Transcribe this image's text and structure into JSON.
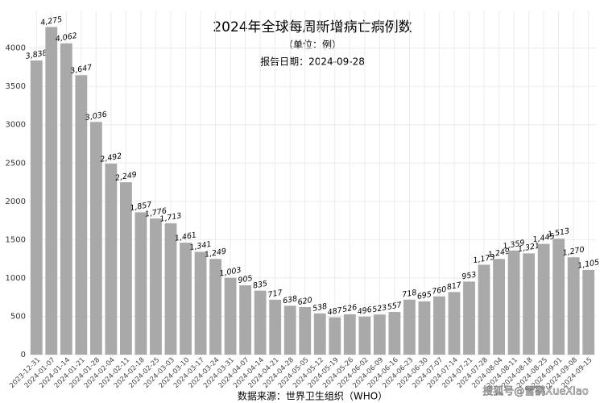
{
  "chart_data": {
    "type": "bar",
    "title": "2024年全球每周新增病亡病例数",
    "subtitle": "（单位：例）",
    "report_date": "报告日期：2024-09-28",
    "source": "数据来源：世界卫生组织（WHO）",
    "watermark": "搜狐号@雪鹞XueXiao",
    "categories": [
      "2023-12-31",
      "2024-01-07",
      "2024-01-14",
      "2024-01-21",
      "2024-01-28",
      "2024-02-04",
      "2024-02-11",
      "2024-02-18",
      "2024-02-25",
      "2024-03-03",
      "2024-03-10",
      "2024-03-17",
      "2024-03-24",
      "2024-03-31",
      "2024-04-07",
      "2024-04-14",
      "2024-04-21",
      "2024-04-28",
      "2024-05-05",
      "2024-05-12",
      "2024-05-19",
      "2024-05-26",
      "2024-06-02",
      "2024-06-09",
      "2024-06-16",
      "2024-06-23",
      "2024-06-30",
      "2024-07-07",
      "2024-07-14",
      "2024-07-21",
      "2024-07-28",
      "2024-08-04",
      "2024-08-11",
      "2024-08-18",
      "2024-08-25",
      "2024-09-01",
      "2024-09-08",
      "2024-09-15"
    ],
    "values": [
      3838,
      4275,
      4062,
      3647,
      3036,
      2492,
      2249,
      1857,
      1776,
      1713,
      1461,
      1341,
      1249,
      1003,
      905,
      835,
      717,
      638,
      620,
      538,
      487,
      526,
      496,
      523,
      557,
      718,
      695,
      760,
      817,
      953,
      1173,
      1249,
      1359,
      1321,
      1445,
      1513,
      1270,
      1105
    ],
    "value_labels": [
      "3,838",
      "4,275",
      "4,062",
      "3,647",
      "3,036",
      "2,492",
      "2,249",
      "1,857",
      "1,776",
      "1,713",
      "1,461",
      "1,341",
      "1,249",
      "1,003",
      "905",
      "835",
      "717",
      "638",
      "620",
      "538",
      "487",
      "526",
      "496",
      "523",
      "557",
      "718",
      "695",
      "760",
      "817",
      "953",
      "1,173",
      "1,249",
      "1,359",
      "1,321",
      "1,445",
      "1,513",
      "1,270",
      "1,105"
    ],
    "color": "#a9a9a9",
    "ylim": [
      0,
      4480
    ],
    "yticks": [
      0,
      500,
      1000,
      1500,
      2000,
      2500,
      3000,
      3500,
      4000
    ],
    "grid": true
  }
}
